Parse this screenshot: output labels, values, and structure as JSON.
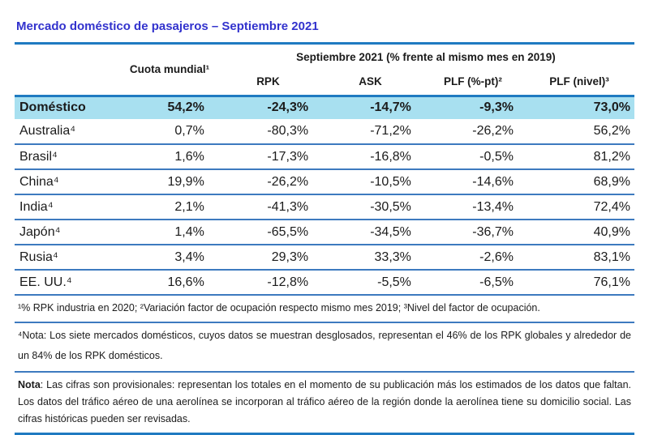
{
  "page": {
    "title": "Mercado doméstico de pasajeros – Septiembre 2021"
  },
  "colors": {
    "title_blue": "#3232CD",
    "line_blue": "#1F7AC1",
    "sep_blue": "#3D7ABF",
    "highlight_cyan": "#A8E0F0",
    "text_black": "#1B1B1B"
  },
  "table": {
    "col_group_header": "Septiembre 2021 (% frente al mismo mes en 2019)",
    "columns": [
      "",
      "Cuota mundial¹",
      "RPK",
      "ASK",
      "PLF (%-pt)²",
      "PLF (nivel)³"
    ],
    "rows": [
      {
        "label": "Doméstico",
        "highlight": true,
        "values": [
          "54,2%",
          "-24,3%",
          "-14,7%",
          "-9,3%",
          "73,0%"
        ]
      },
      {
        "label": "Australia⁴",
        "highlight": false,
        "values": [
          "0,7%",
          "-80,3%",
          "-71,2%",
          "-26,2%",
          "56,2%"
        ]
      },
      {
        "label": "Brasil⁴",
        "highlight": false,
        "values": [
          "1,6%",
          "-17,3%",
          "-16,8%",
          "-0,5%",
          "81,2%"
        ]
      },
      {
        "label": "China⁴",
        "highlight": false,
        "values": [
          "19,9%",
          "-26,2%",
          "-10,5%",
          "-14,6%",
          "68,9%"
        ]
      },
      {
        "label": "India⁴",
        "highlight": false,
        "values": [
          "2,1%",
          "-41,3%",
          "-30,5%",
          "-13,4%",
          "72,4%"
        ]
      },
      {
        "label": "Japón⁴",
        "highlight": false,
        "values": [
          "1,4%",
          "-65,5%",
          "-34,5%",
          "-36,7%",
          "40,9%"
        ]
      },
      {
        "label": "Rusia⁴",
        "highlight": false,
        "values": [
          "3,4%",
          "29,3%",
          "33,3%",
          "-2,6%",
          "83,1%"
        ]
      },
      {
        "label": "EE. UU.⁴",
        "highlight": false,
        "values": [
          "16,6%",
          "-12,8%",
          "-5,5%",
          "-6,5%",
          "76,1%"
        ]
      }
    ]
  },
  "notes": [
    {
      "bold_label": "",
      "text": "¹% RPK industria en 2020; ²Variación factor de ocupación respecto mismo mes 2019; ³Nivel del factor de ocupación."
    },
    {
      "bold_label": "",
      "text": "⁴Nota: Los siete mercados domésticos, cuyos datos se muestran desglosados, representan el 46% de los RPK globales y alrededor de un 84% de los RPK domésticos."
    },
    {
      "bold_label": "Nota",
      "text": ": Las cifras son provisionales: representan los totales en el momento de su publicación más los estimados de los datos que faltan. Los datos del tráfico aéreo de una aerolínea se incorporan al tráfico aéreo de la región donde la aerolínea tiene su domicilio social. Las cifras históricas pueden ser revisadas."
    }
  ]
}
